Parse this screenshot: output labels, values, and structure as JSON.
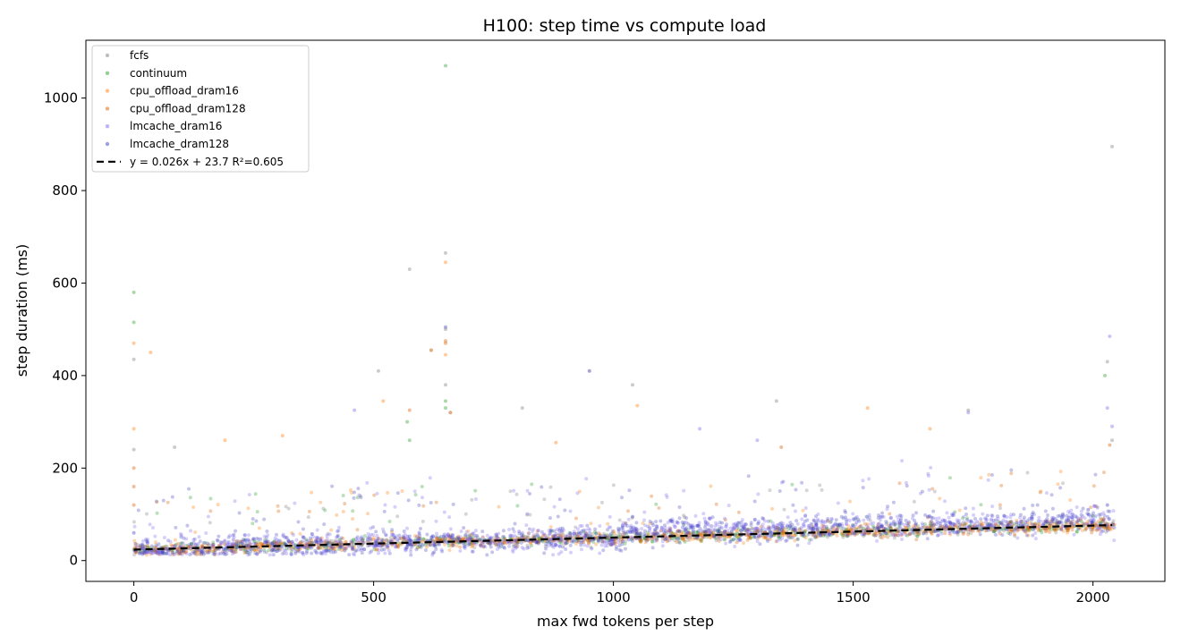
{
  "chart_data": {
    "type": "scatter",
    "title": "H100: step time vs compute load",
    "xlabel": "max fwd tokens per step",
    "ylabel": "step duration (ms)",
    "xlim": [
      -100,
      2150
    ],
    "ylim": [
      -45,
      1125
    ],
    "xticks": [
      0,
      500,
      1000,
      1500,
      2000
    ],
    "yticks": [
      0,
      200,
      400,
      600,
      800,
      1000
    ],
    "grid": false,
    "legend_position": "top-left",
    "colors": {
      "fcfs": "#7f7f7f",
      "continuum": "#2ca02c",
      "cpu_offload_dram16": "#ff7f0e",
      "cpu_offload_dram128": "#d95f02",
      "lmcache_dram16": "#7b68ee",
      "lmcache_dram128": "#3f3fc0"
    },
    "series": [
      {
        "name": "fcfs",
        "points": [
          [
            0,
            435
          ],
          [
            0,
            240
          ],
          [
            650,
            665
          ],
          [
            650,
            500
          ],
          [
            650,
            380
          ],
          [
            575,
            630
          ],
          [
            2030,
            430
          ],
          [
            2040,
            895
          ],
          [
            510,
            410
          ],
          [
            660,
            320
          ],
          [
            1040,
            380
          ],
          [
            950,
            410
          ],
          [
            1740,
            325
          ],
          [
            1340,
            345
          ],
          [
            810,
            330
          ],
          [
            85,
            245
          ],
          [
            2040,
            260
          ],
          [
            620,
            455
          ]
        ]
      },
      {
        "name": "continuum",
        "points": [
          [
            0,
            580
          ],
          [
            0,
            515
          ],
          [
            650,
            1070
          ],
          [
            650,
            330
          ],
          [
            575,
            260
          ],
          [
            2025,
            400
          ],
          [
            650,
            345
          ],
          [
            570,
            300
          ]
        ]
      },
      {
        "name": "cpu_offload_dram16",
        "points": [
          [
            0,
            470
          ],
          [
            0,
            285
          ],
          [
            35,
            450
          ],
          [
            650,
            645
          ],
          [
            650,
            445
          ],
          [
            1530,
            330
          ],
          [
            1660,
            285
          ],
          [
            1050,
            335
          ],
          [
            310,
            270
          ],
          [
            190,
            260
          ],
          [
            520,
            345
          ],
          [
            620,
            455
          ],
          [
            880,
            255
          ],
          [
            660,
            320
          ]
        ]
      },
      {
        "name": "cpu_offload_dram128",
        "points": [
          [
            650,
            475
          ],
          [
            650,
            470
          ],
          [
            575,
            325
          ],
          [
            0,
            200
          ],
          [
            0,
            160
          ],
          [
            0,
            120
          ],
          [
            2035,
            250
          ],
          [
            1350,
            245
          ]
        ]
      },
      {
        "name": "lmcache_dram16",
        "points": [
          [
            2035,
            485
          ],
          [
            2030,
            330
          ],
          [
            1740,
            320
          ],
          [
            2040,
            290
          ],
          [
            460,
            325
          ],
          [
            1180,
            285
          ],
          [
            1300,
            260
          ],
          [
            950,
            410
          ]
        ]
      },
      {
        "name": "lmcache_dram128",
        "points": [
          [
            650,
            505
          ],
          [
            0,
            60
          ],
          [
            2030,
            120
          ],
          [
            1990,
            110
          ],
          [
            1040,
            95
          ]
        ]
      }
    ],
    "fit_line": {
      "name": "y = 0.026x + 23.7  R²=0.605",
      "slope": 0.026,
      "intercept": 23.7,
      "x_range": [
        0,
        2040
      ],
      "color": "#000000"
    }
  }
}
